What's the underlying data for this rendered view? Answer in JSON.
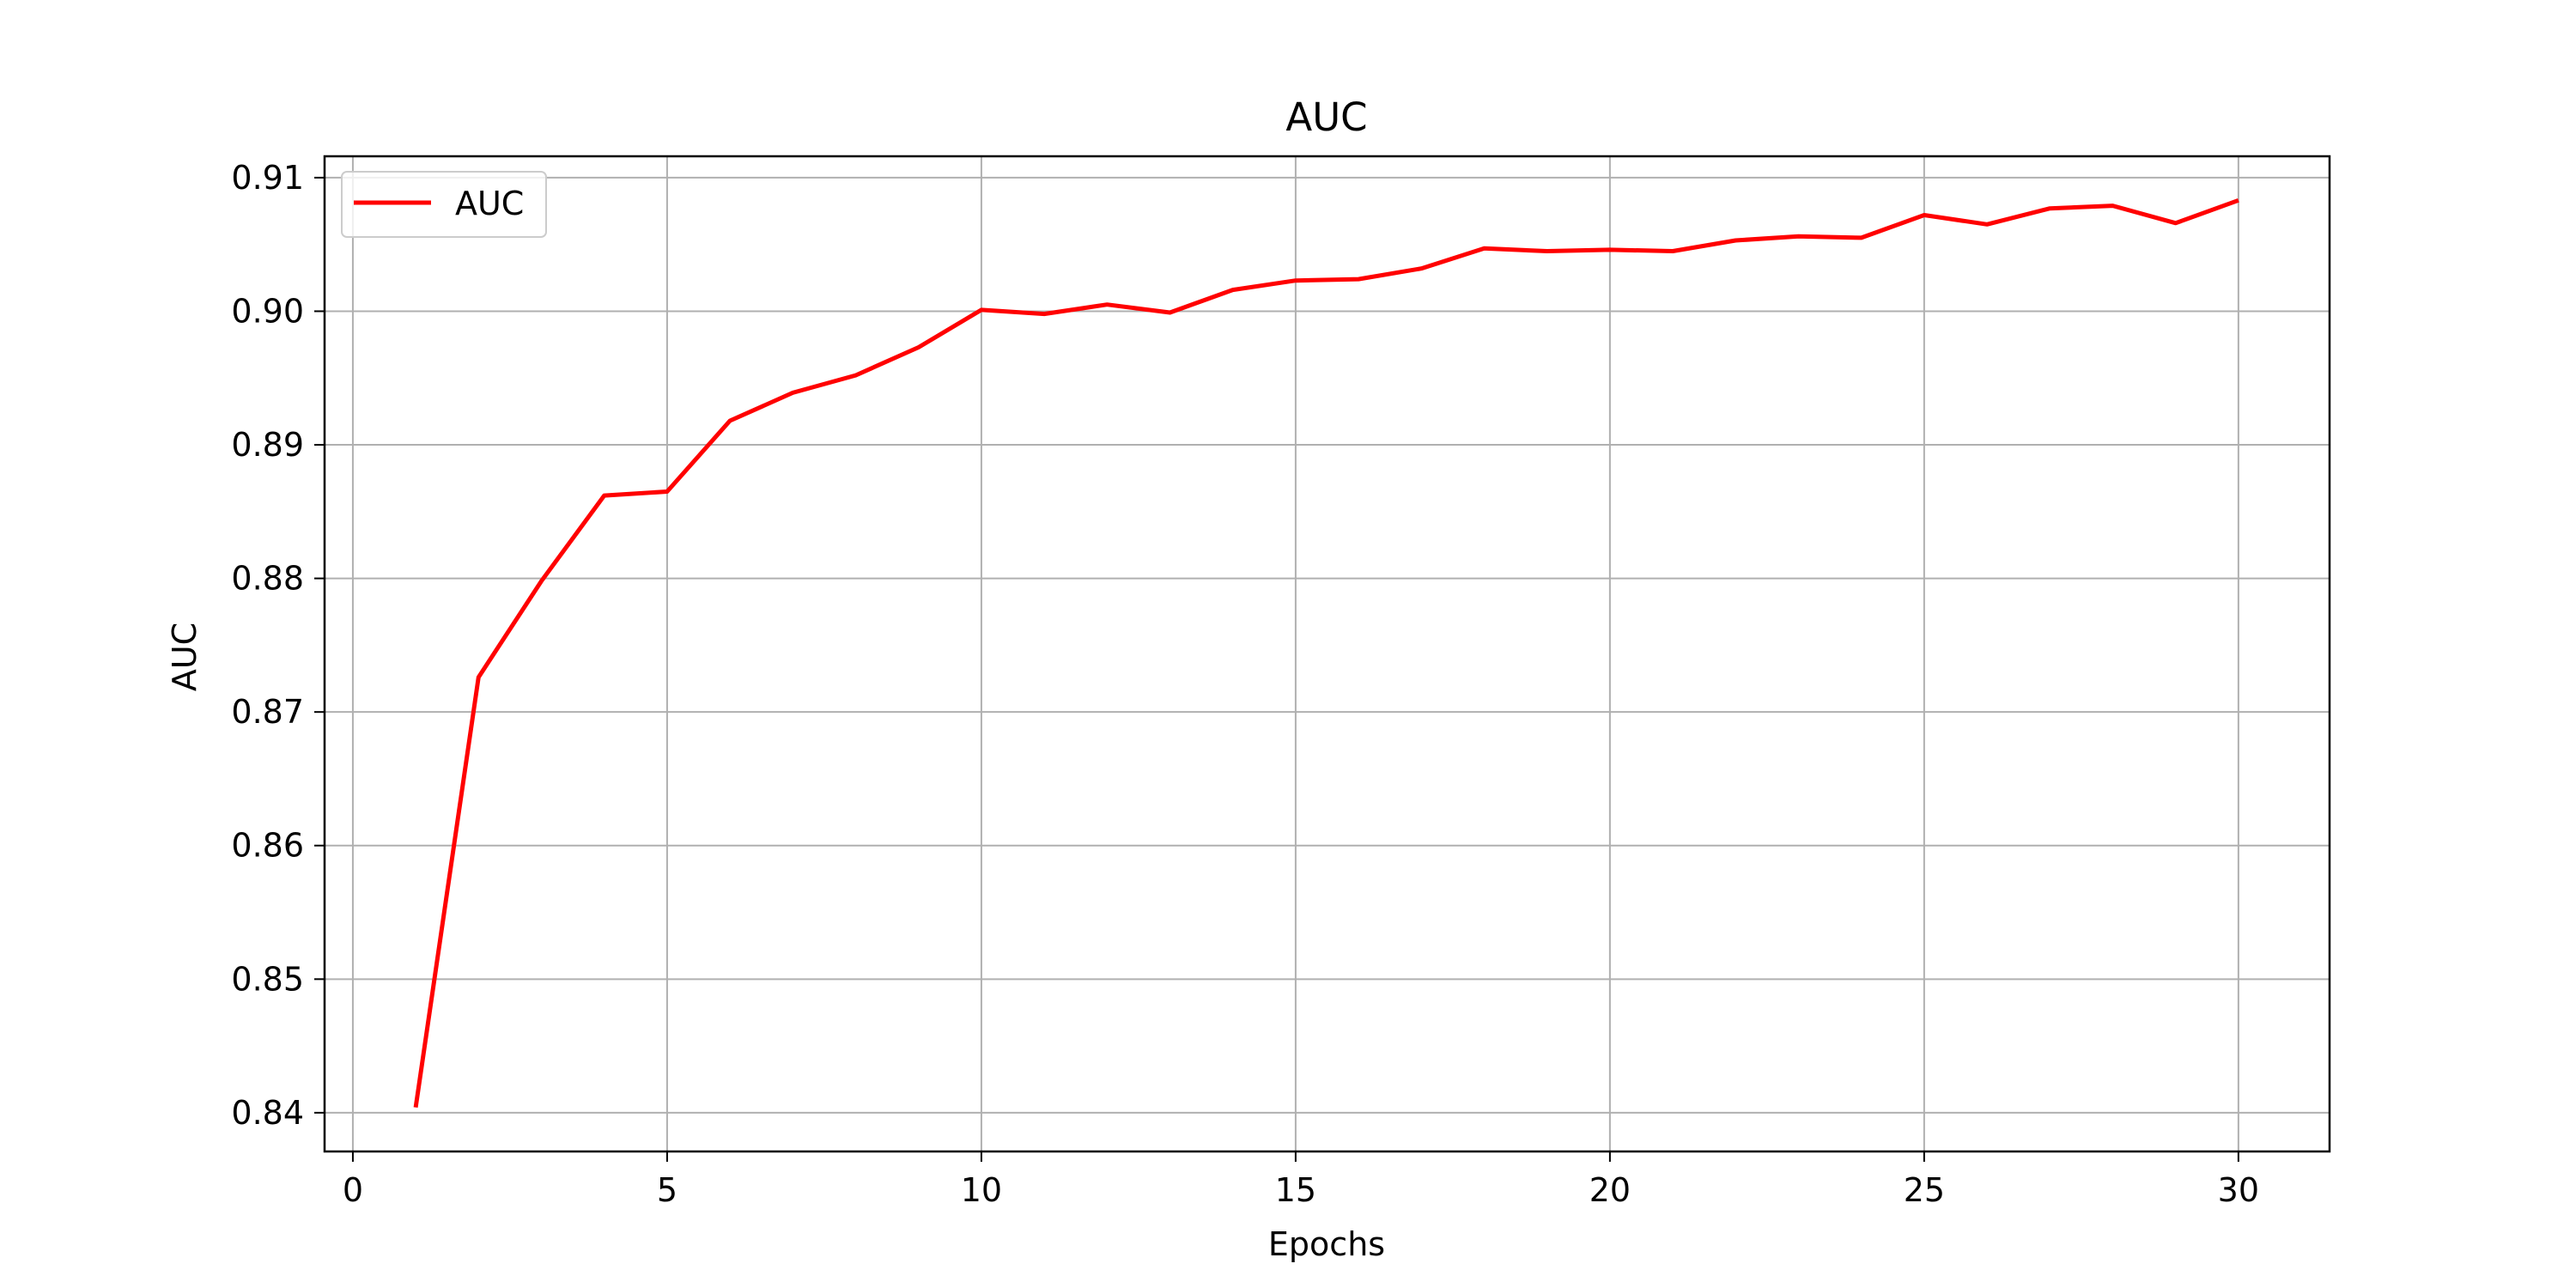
{
  "chart_data": {
    "type": "line",
    "title": "AUC",
    "xlabel": "Epochs",
    "ylabel": "AUC",
    "xlim": [
      -0.45,
      31.45
    ],
    "ylim": [
      0.8371,
      0.9116
    ],
    "xticks": [
      0,
      5,
      10,
      15,
      20,
      25,
      30
    ],
    "yticks": [
      0.84,
      0.85,
      0.86,
      0.87,
      0.88,
      0.89,
      0.9,
      0.91
    ],
    "xtick_labels": [
      "0",
      "5",
      "10",
      "15",
      "20",
      "25",
      "30"
    ],
    "ytick_labels": [
      "0.84",
      "0.85",
      "0.86",
      "0.87",
      "0.88",
      "0.89",
      "0.90",
      "0.91"
    ],
    "grid": true,
    "legend_position": "top-left",
    "series": [
      {
        "name": "AUC",
        "color": "#ff0000",
        "x": [
          1,
          2,
          3,
          4,
          5,
          6,
          7,
          8,
          9,
          10,
          11,
          12,
          13,
          14,
          15,
          16,
          17,
          18,
          19,
          20,
          21,
          22,
          23,
          24,
          25,
          26,
          27,
          28,
          29,
          30
        ],
        "y": [
          0.8404,
          0.8726,
          0.8798,
          0.8862,
          0.8865,
          0.8918,
          0.8939,
          0.8952,
          0.8973,
          0.9001,
          0.8998,
          0.9005,
          0.8999,
          0.9016,
          0.9023,
          0.9024,
          0.9032,
          0.9047,
          0.9045,
          0.9046,
          0.9045,
          0.9053,
          0.9056,
          0.9055,
          0.9072,
          0.9065,
          0.9077,
          0.9079,
          0.9066,
          0.9083
        ]
      }
    ]
  }
}
